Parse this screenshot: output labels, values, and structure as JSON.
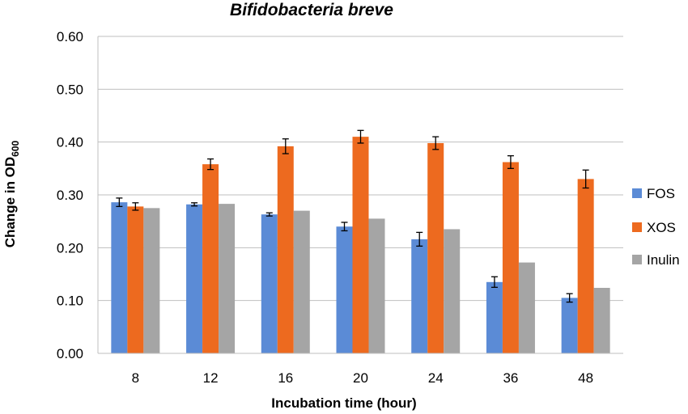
{
  "chart_data": {
    "type": "bar",
    "title": "Bifidobacteria breve",
    "xlabel": "Incubation time (hour)",
    "ylabel": "Change in OD",
    "ylabel_subscript": "600",
    "ylim": [
      0,
      0.6
    ],
    "yticks": [
      "0.00",
      "0.10",
      "0.20",
      "0.30",
      "0.40",
      "0.50",
      "0.60"
    ],
    "grid": true,
    "legend_position": "right",
    "categories": [
      "8",
      "12",
      "16",
      "20",
      "24",
      "36",
      "48"
    ],
    "series": [
      {
        "name": "FOS",
        "color": "#5B8BD6",
        "values": [
          0.286,
          0.282,
          0.263,
          0.24,
          0.216,
          0.135,
          0.105
        ],
        "errors": [
          0.008,
          0.003,
          0.003,
          0.008,
          0.013,
          0.01,
          0.008
        ]
      },
      {
        "name": "XOS",
        "color": "#ED6A1F",
        "values": [
          0.278,
          0.358,
          0.392,
          0.41,
          0.398,
          0.362,
          0.33
        ],
        "errors": [
          0.007,
          0.01,
          0.014,
          0.012,
          0.012,
          0.012,
          0.017
        ]
      },
      {
        "name": "Inulin",
        "color": "#A5A5A5",
        "values": [
          0.275,
          0.283,
          0.27,
          0.255,
          0.235,
          0.172,
          0.124
        ],
        "errors": [
          null,
          null,
          null,
          null,
          null,
          null,
          null
        ]
      }
    ]
  }
}
